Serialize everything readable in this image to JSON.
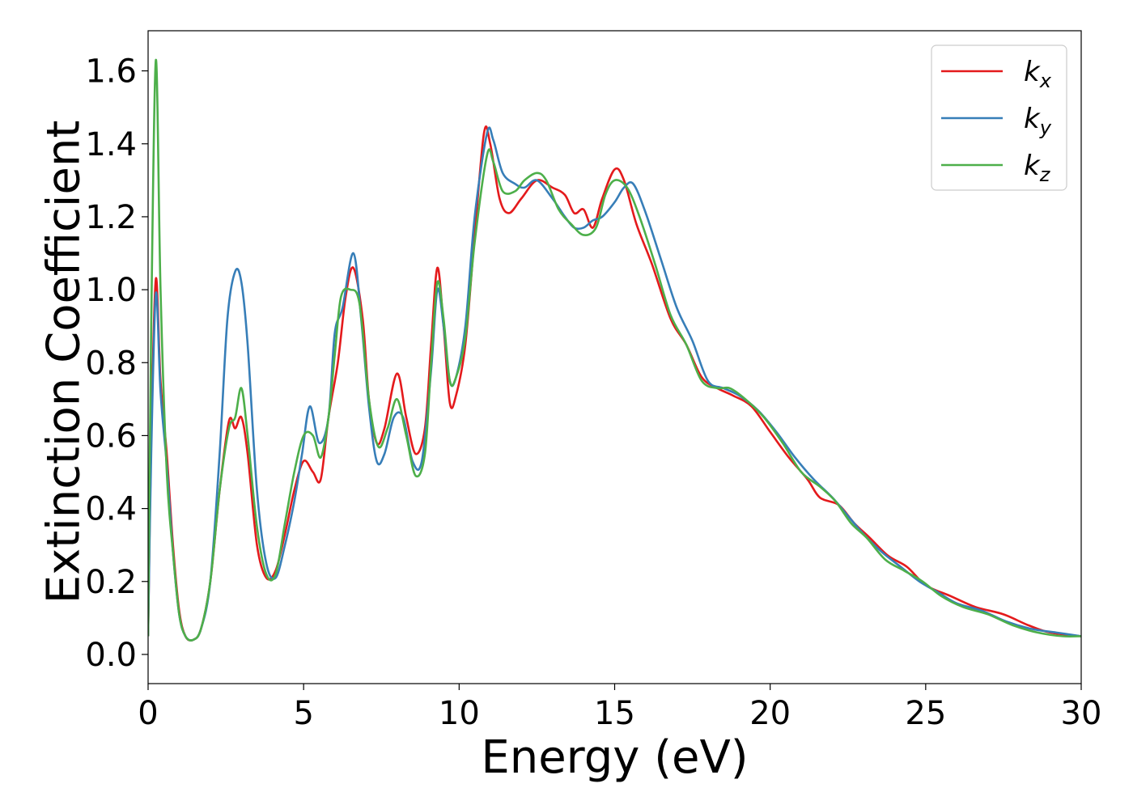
{
  "chart_data": {
    "type": "line",
    "title": "",
    "xlabel": "Energy (eV)",
    "ylabel": "Extinction Coefficient",
    "xlim": [
      0,
      30
    ],
    "ylim": [
      -0.08,
      1.71
    ],
    "xticks": [
      0,
      5,
      10,
      15,
      20,
      25,
      30
    ],
    "xtick_labels": [
      "0",
      "5",
      "10",
      "15",
      "20",
      "25",
      "30"
    ],
    "yticks": [
      0.0,
      0.2,
      0.4,
      0.6,
      0.8,
      1.0,
      1.2,
      1.4,
      1.6
    ],
    "ytick_labels": [
      "0.0",
      "0.2",
      "0.4",
      "0.6",
      "0.8",
      "1.0",
      "1.2",
      "1.4",
      "1.6"
    ],
    "grid": false,
    "legend_position": "top-right",
    "series": [
      {
        "name": "k_x",
        "label_main": "k",
        "label_sub": "x",
        "color": "#e41a1c",
        "x": [
          0,
          0.1,
          0.25,
          0.4,
          0.6,
          0.8,
          1.0,
          1.2,
          1.45,
          1.7,
          2.0,
          2.3,
          2.6,
          2.8,
          3.0,
          3.2,
          3.5,
          3.8,
          4.1,
          4.4,
          4.7,
          5.0,
          5.3,
          5.55,
          5.8,
          6.1,
          6.35,
          6.6,
          6.9,
          7.1,
          7.35,
          7.6,
          8.0,
          8.3,
          8.6,
          8.9,
          9.1,
          9.3,
          9.5,
          9.7,
          9.9,
          10.2,
          10.5,
          10.8,
          11.0,
          11.3,
          11.6,
          12.0,
          12.5,
          13.0,
          13.4,
          13.7,
          14.0,
          14.3,
          14.6,
          15.0,
          15.3,
          15.7,
          16.2,
          16.8,
          17.3,
          17.8,
          18.3,
          18.8,
          19.4,
          20.0,
          20.6,
          21.2,
          21.6,
          22.2,
          22.7,
          23.2,
          23.8,
          24.4,
          25.0,
          25.8,
          26.6,
          27.5,
          28.3,
          29.0,
          30.0
        ],
        "y": [
          0.05,
          0.6,
          1.03,
          0.75,
          0.55,
          0.3,
          0.12,
          0.05,
          0.04,
          0.07,
          0.2,
          0.45,
          0.64,
          0.62,
          0.65,
          0.55,
          0.3,
          0.21,
          0.23,
          0.33,
          0.45,
          0.53,
          0.5,
          0.48,
          0.65,
          0.8,
          0.98,
          1.06,
          0.92,
          0.7,
          0.58,
          0.62,
          0.77,
          0.65,
          0.55,
          0.62,
          0.85,
          1.06,
          0.9,
          0.69,
          0.71,
          0.85,
          1.15,
          1.43,
          1.4,
          1.25,
          1.21,
          1.25,
          1.3,
          1.28,
          1.26,
          1.21,
          1.22,
          1.17,
          1.25,
          1.33,
          1.3,
          1.18,
          1.07,
          0.92,
          0.85,
          0.76,
          0.73,
          0.71,
          0.68,
          0.61,
          0.54,
          0.48,
          0.43,
          0.41,
          0.36,
          0.32,
          0.27,
          0.24,
          0.19,
          0.16,
          0.13,
          0.11,
          0.08,
          0.06,
          0.05
        ]
      },
      {
        "name": "k_y",
        "label_main": "k",
        "label_sub": "y",
        "color": "#377eb8",
        "x": [
          0,
          0.1,
          0.25,
          0.4,
          0.6,
          0.8,
          1.0,
          1.2,
          1.45,
          1.7,
          2.0,
          2.3,
          2.55,
          2.8,
          3.0,
          3.2,
          3.5,
          3.8,
          4.1,
          4.4,
          4.7,
          4.95,
          5.2,
          5.5,
          5.8,
          6.0,
          6.25,
          6.6,
          6.85,
          7.1,
          7.35,
          7.6,
          7.9,
          8.2,
          8.5,
          8.8,
          9.1,
          9.3,
          9.5,
          9.7,
          9.9,
          10.2,
          10.5,
          10.9,
          11.1,
          11.4,
          11.8,
          12.1,
          12.5,
          13.0,
          13.4,
          13.7,
          14.0,
          14.3,
          14.6,
          15.0,
          15.3,
          15.6,
          16.0,
          16.5,
          17.0,
          17.5,
          18.0,
          18.5,
          19.0,
          19.6,
          20.2,
          20.8,
          21.4,
          22.0,
          22.5,
          23.0,
          23.6,
          24.2,
          24.8,
          25.4,
          26.0,
          26.8,
          27.6,
          28.4,
          29.2,
          30.0
        ],
        "y": [
          0.05,
          0.55,
          0.99,
          0.72,
          0.52,
          0.28,
          0.11,
          0.05,
          0.04,
          0.07,
          0.2,
          0.55,
          0.92,
          1.05,
          1.02,
          0.85,
          0.45,
          0.25,
          0.21,
          0.3,
          0.42,
          0.55,
          0.68,
          0.58,
          0.65,
          0.88,
          0.95,
          1.1,
          0.92,
          0.68,
          0.53,
          0.55,
          0.65,
          0.65,
          0.53,
          0.53,
          0.78,
          1.0,
          0.9,
          0.75,
          0.76,
          0.9,
          1.2,
          1.43,
          1.41,
          1.32,
          1.29,
          1.28,
          1.3,
          1.25,
          1.2,
          1.17,
          1.17,
          1.19,
          1.2,
          1.24,
          1.28,
          1.29,
          1.21,
          1.08,
          0.95,
          0.86,
          0.75,
          0.73,
          0.71,
          0.67,
          0.61,
          0.54,
          0.48,
          0.43,
          0.38,
          0.33,
          0.28,
          0.24,
          0.2,
          0.17,
          0.14,
          0.12,
          0.09,
          0.07,
          0.06,
          0.05
        ]
      },
      {
        "name": "k_z",
        "label_main": "k",
        "label_sub": "z",
        "color": "#4daf4a",
        "x": [
          0,
          0.1,
          0.25,
          0.4,
          0.6,
          0.8,
          1.0,
          1.2,
          1.45,
          1.7,
          2.0,
          2.3,
          2.6,
          2.8,
          3.0,
          3.2,
          3.5,
          3.8,
          4.1,
          4.4,
          4.7,
          5.0,
          5.3,
          5.55,
          5.8,
          6.0,
          6.2,
          6.5,
          6.8,
          7.1,
          7.4,
          7.7,
          8.0,
          8.3,
          8.6,
          8.9,
          9.1,
          9.3,
          9.5,
          9.7,
          9.9,
          10.2,
          10.5,
          10.9,
          11.1,
          11.4,
          11.8,
          12.1,
          12.5,
          12.8,
          13.2,
          13.6,
          14.0,
          14.4,
          14.7,
          15.0,
          15.4,
          15.8,
          16.3,
          16.8,
          17.3,
          17.8,
          18.3,
          18.7,
          19.2,
          19.8,
          20.4,
          21.0,
          21.6,
          22.1,
          22.6,
          23.1,
          23.7,
          24.3,
          24.9,
          25.5,
          26.2,
          27.0,
          27.8,
          28.6,
          29.4,
          30.0
        ],
        "y": [
          0.05,
          0.9,
          1.63,
          1.0,
          0.5,
          0.28,
          0.11,
          0.05,
          0.04,
          0.07,
          0.2,
          0.45,
          0.62,
          0.65,
          0.73,
          0.6,
          0.35,
          0.22,
          0.22,
          0.36,
          0.5,
          0.6,
          0.6,
          0.54,
          0.65,
          0.82,
          0.98,
          1.0,
          0.96,
          0.7,
          0.57,
          0.62,
          0.7,
          0.6,
          0.49,
          0.55,
          0.8,
          1.02,
          0.92,
          0.75,
          0.76,
          0.87,
          1.13,
          1.37,
          1.35,
          1.27,
          1.27,
          1.3,
          1.32,
          1.3,
          1.22,
          1.18,
          1.15,
          1.17,
          1.26,
          1.3,
          1.28,
          1.2,
          1.07,
          0.93,
          0.85,
          0.75,
          0.73,
          0.73,
          0.7,
          0.65,
          0.58,
          0.5,
          0.46,
          0.42,
          0.36,
          0.32,
          0.26,
          0.23,
          0.2,
          0.16,
          0.13,
          0.11,
          0.08,
          0.06,
          0.05,
          0.05
        ]
      }
    ]
  }
}
